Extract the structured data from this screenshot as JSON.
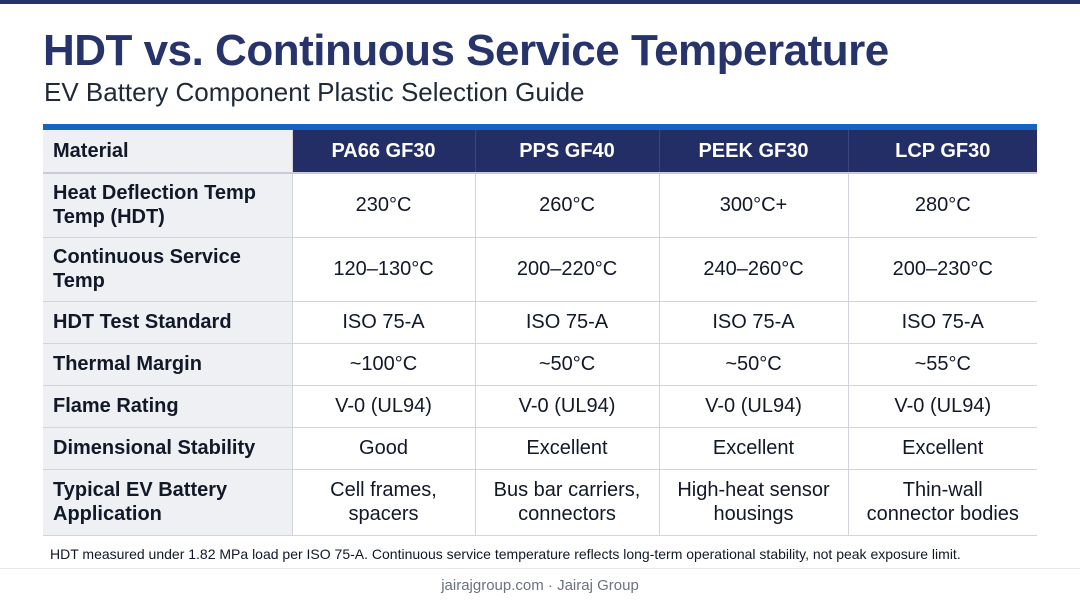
{
  "title": "HDT vs. Continuous Service Temperature",
  "subtitle": "EV Battery Component Plastic Selection Guide",
  "table": {
    "header_label": "Material",
    "columns": [
      "PA66 GF30",
      "PPS GF40",
      "PEEK GF30",
      "LCP GF30"
    ],
    "rows": [
      {
        "label": "Heat Deflection Temp Temp (HDT)",
        "values": [
          "230°C",
          "260°C",
          "300°C+",
          "280°C"
        ]
      },
      {
        "label": "Continuous Service Temp",
        "values": [
          "120–130°C",
          "200–220°C",
          "240–260°C",
          "200–230°C"
        ]
      },
      {
        "label": "HDT Test Standard",
        "values": [
          "ISO 75-A",
          "ISO 75-A",
          "ISO 75-A",
          "ISO 75-A"
        ]
      },
      {
        "label": "Thermal Margin",
        "values": [
          "~100°C",
          "~50°C",
          "~50°C",
          "~55°C"
        ]
      },
      {
        "label": "Flame Rating",
        "values": [
          "V-0 (UL94)",
          "V-0 (UL94)",
          "V-0 (UL94)",
          "V-0 (UL94)"
        ]
      },
      {
        "label": "Dimensional Stability",
        "values": [
          "Good",
          "Excellent",
          "Excellent",
          "Excellent"
        ]
      },
      {
        "label": "Typical EV Battery Application",
        "values": [
          "Cell frames, spacers",
          "Bus bar carriers, connectors",
          "High-heat sensor housings",
          "Thin-wall connector bodies"
        ]
      }
    ]
  },
  "footnote": "HDT measured under 1.82 MPa load per ISO 75-A. Continuous service temperature reflects long-term operational stability, not peak exposure limit.",
  "footer": "jairajgroup.com · Jairaj Group",
  "colors": {
    "title": "#27336b",
    "header_bg": "#232e66",
    "accent": "#1565c0",
    "label_bg": "#eef0f4"
  }
}
